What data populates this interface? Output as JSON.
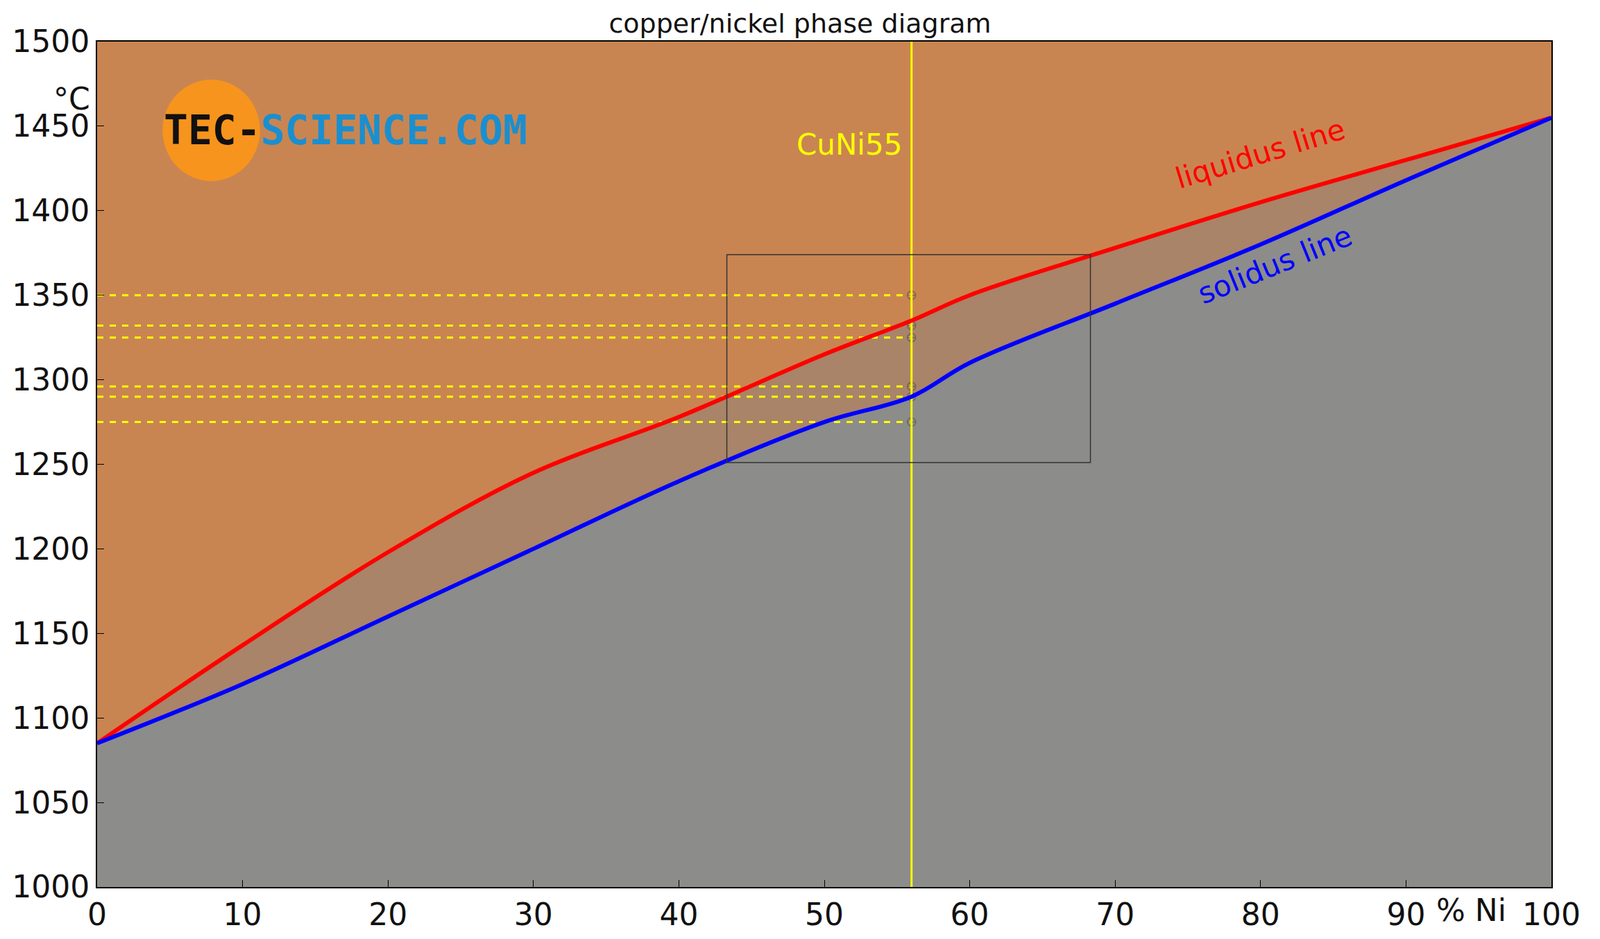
{
  "chart_data": {
    "type": "line",
    "title": "copper/nickel phase diagram",
    "xlabel": "% Ni",
    "ylabel": "°C",
    "xlim": [
      0,
      100
    ],
    "ylim": [
      1000,
      1500
    ],
    "xticks": [
      0,
      10,
      20,
      30,
      40,
      50,
      60,
      70,
      80,
      90,
      100
    ],
    "yticks": [
      1000,
      1050,
      1100,
      1150,
      1200,
      1250,
      1300,
      1350,
      1400,
      1450,
      1500
    ],
    "grid": false,
    "series": [
      {
        "name": "liquidus line",
        "color": "#ff0000",
        "x": [
          0,
          10,
          20,
          30,
          40,
          50,
          56,
          60,
          70,
          80,
          90,
          100
        ],
        "values": [
          1085,
          1143,
          1198,
          1245,
          1278,
          1315,
          1335,
          1350,
          1378,
          1405,
          1430,
          1455
        ],
        "label_at": {
          "x": 80,
          "y": 1408
        }
      },
      {
        "name": "solidus line",
        "color": "#0000ff",
        "x": [
          0,
          10,
          20,
          30,
          40,
          50,
          56,
          60,
          70,
          80,
          90,
          100
        ],
        "values": [
          1085,
          1120,
          1160,
          1200,
          1240,
          1275,
          1290,
          1310,
          1345,
          1380,
          1418,
          1455
        ],
        "label_at": {
          "x": 81,
          "y": 1368
        }
      }
    ],
    "reference_line": {
      "name": "CuNi55",
      "x": 56,
      "color": "#ffff00",
      "levels": [
        1350,
        1332,
        1325,
        1296,
        1290,
        1275
      ]
    },
    "zoom_box": {
      "x": [
        43.3,
        68.3
      ],
      "y": [
        1251,
        1374
      ]
    },
    "logo": [
      {
        "text": "TEC-",
        "color": "#111111"
      },
      {
        "text": "SCIENCE.COM",
        "color": "#1a8fd0"
      }
    ]
  }
}
